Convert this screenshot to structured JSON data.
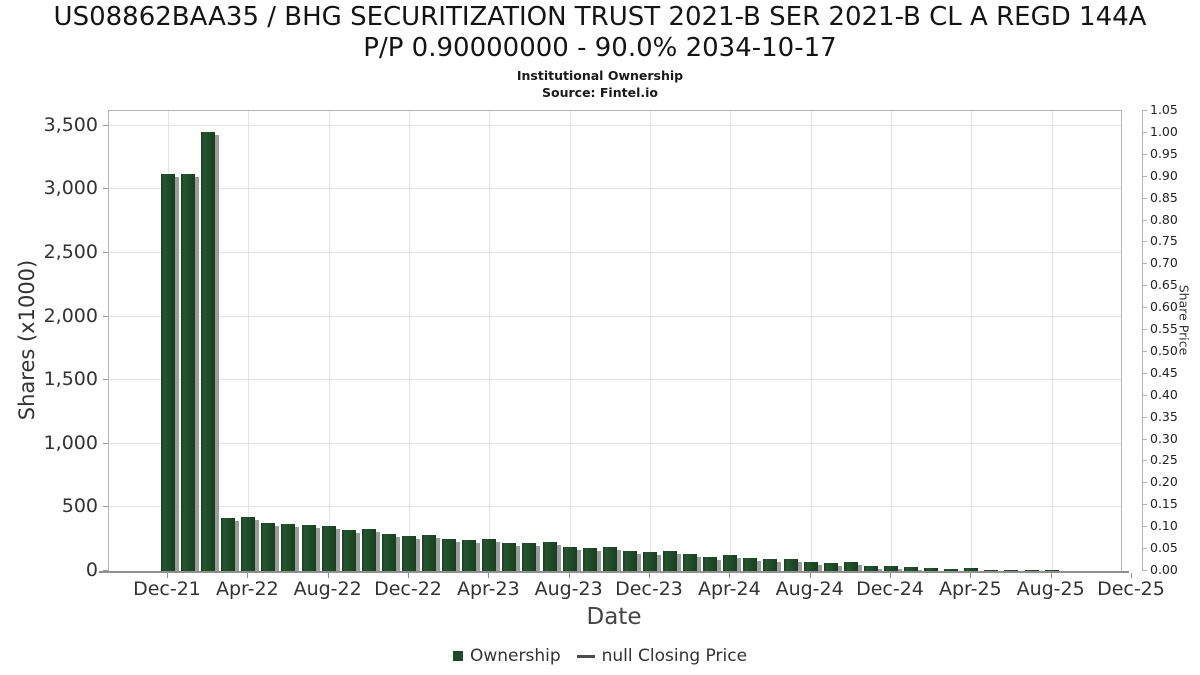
{
  "header": {
    "title_line1": "US08862BAA35 / BHG SECURITIZATION TRUST 2021-B SER 2021-B CL A REGD 144A",
    "title_line2": "P/P 0.90000000 - 90.0% 2034-10-17",
    "subtitle": "Institutional Ownership",
    "source": "Source: Fintel.io"
  },
  "chart_data": {
    "type": "bar",
    "title": "Institutional Ownership",
    "xlabel": "Date",
    "ylabel_left": "Shares (x1000)",
    "ylabel_right": "Share Price",
    "grid": true,
    "legend_position": "bottom",
    "x": [
      "Dec-21",
      "Jan-22",
      "Feb-22",
      "Mar-22",
      "Apr-22",
      "May-22",
      "Jun-22",
      "Jul-22",
      "Aug-22",
      "Sep-22",
      "Oct-22",
      "Nov-22",
      "Dec-22",
      "Jan-23",
      "Feb-23",
      "Mar-23",
      "Apr-23",
      "May-23",
      "Jun-23",
      "Jul-23",
      "Aug-23",
      "Sep-23",
      "Oct-23",
      "Nov-23",
      "Dec-23",
      "Jan-24",
      "Feb-24",
      "Mar-24",
      "Apr-24",
      "May-24",
      "Jun-24",
      "Jul-24",
      "Aug-24",
      "Sep-24",
      "Oct-24",
      "Nov-24",
      "Dec-24",
      "Jan-25",
      "Feb-25",
      "Mar-25",
      "Apr-25",
      "May-25",
      "Jun-25",
      "Jul-25",
      "Aug-25"
    ],
    "series": [
      {
        "name": "Ownership",
        "type": "bar",
        "color": "#1e4b27",
        "values": [
          3125,
          3125,
          3450,
          415,
          423,
          381,
          370,
          364,
          356,
          323,
          328,
          290,
          275,
          281,
          254,
          241,
          249,
          223,
          220,
          228,
          192,
          180,
          190,
          157,
          150,
          157,
          131,
          113,
          124,
          105,
          97,
          92,
          71,
          65,
          71,
          40,
          40,
          34,
          21,
          18,
          20,
          8,
          10,
          8,
          10
        ]
      },
      {
        "name": "null Closing Price",
        "type": "line",
        "color": "#4d4d4d",
        "values": null
      }
    ],
    "x_tick_labels": [
      "Dec-21",
      "Apr-22",
      "Aug-22",
      "Dec-22",
      "Apr-23",
      "Aug-23",
      "Dec-23",
      "Apr-24",
      "Aug-24",
      "Dec-24",
      "Apr-25",
      "Aug-25",
      "Dec-25"
    ],
    "y_left_ticks": [
      0,
      500,
      1000,
      1500,
      2000,
      2500,
      3000,
      3500
    ],
    "y_left_tick_labels": [
      "0",
      "500",
      "1,000",
      "1,500",
      "2,000",
      "2,500",
      "3,000",
      "3,500"
    ],
    "y_left_max": 3617,
    "y_right_ticks": [
      0.0,
      0.05,
      0.1,
      0.15,
      0.2,
      0.25,
      0.3,
      0.35,
      0.4,
      0.45,
      0.5,
      0.55,
      0.6,
      0.65,
      0.7,
      0.75,
      0.8,
      0.85,
      0.9,
      0.95,
      1.0,
      1.05
    ],
    "y_right_tick_labels": [
      "0.00",
      "0.05",
      "0.10",
      "0.15",
      "0.20",
      "0.25",
      "0.30",
      "0.35",
      "0.40",
      "0.45",
      "0.50",
      "0.55",
      "0.60",
      "0.65",
      "0.70",
      "0.75",
      "0.80",
      "0.85",
      "0.90",
      "0.95",
      "1.00",
      "1.05"
    ],
    "y_right_max": 1.05,
    "legend_items": [
      {
        "label": "Ownership",
        "marker": "square",
        "color": "#1e4b27"
      },
      {
        "label": "null Closing Price",
        "marker": "line",
        "color": "#4d4d4d"
      }
    ],
    "colors": {
      "bar": "#1e4b27",
      "bar_shadow": "#9c9c9c",
      "gridline": "#e4e4e4",
      "axis": "#b3b3b3",
      "text": "#333333"
    }
  }
}
